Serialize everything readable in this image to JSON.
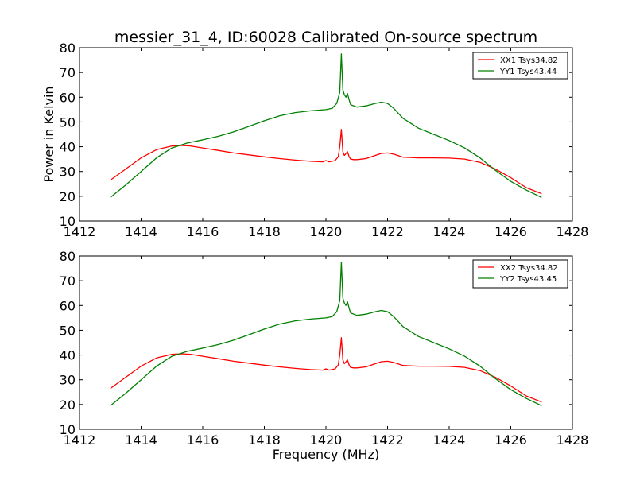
{
  "figure": {
    "title": "messier_31_4, ID:60028 Calibrated On-source spectrum"
  },
  "colors": {
    "xx": "#ff0000",
    "yy": "#008000",
    "axes": "#000000",
    "background": "#ffffff"
  },
  "chart_data": [
    {
      "type": "line",
      "title": "messier_31_4, ID:60028 Calibrated On-source spectrum",
      "xlabel": "",
      "ylabel": "Power in Kelvin",
      "xlim": [
        1412,
        1428
      ],
      "ylim": [
        10,
        80
      ],
      "xticks": [
        "1412",
        "1414",
        "1416",
        "1418",
        "1420",
        "1422",
        "1424",
        "1426",
        "1428"
      ],
      "yticks": [
        "10",
        "20",
        "30",
        "40",
        "50",
        "60",
        "70",
        "80"
      ],
      "grid": false,
      "legend": "top-right",
      "series": [
        {
          "name": "XX1 Tsys34.82",
          "color": "#ff0000",
          "x": [
            1413.0,
            1413.5,
            1414.0,
            1414.5,
            1415.0,
            1415.3,
            1415.6,
            1416.0,
            1416.5,
            1417.0,
            1417.5,
            1418.0,
            1418.5,
            1419.0,
            1419.5,
            1419.9,
            1420.0,
            1420.1,
            1420.3,
            1420.4,
            1420.45,
            1420.5,
            1420.55,
            1420.6,
            1420.7,
            1420.75,
            1420.8,
            1420.9,
            1421.0,
            1421.3,
            1421.6,
            1421.8,
            1422.0,
            1422.2,
            1422.5,
            1423.0,
            1423.5,
            1424.0,
            1424.5,
            1425.0,
            1425.5,
            1426.0,
            1426.5,
            1427.0
          ],
          "y": [
            26.5,
            31.0,
            35.5,
            38.8,
            40.3,
            40.5,
            40.3,
            39.5,
            38.5,
            37.5,
            36.7,
            35.9,
            35.2,
            34.6,
            34.1,
            33.9,
            34.4,
            33.9,
            34.4,
            36.0,
            40.0,
            47.0,
            38.0,
            36.5,
            38.0,
            36.0,
            35.0,
            34.8,
            34.8,
            35.2,
            36.5,
            37.3,
            37.5,
            37.0,
            35.8,
            35.5,
            35.5,
            35.4,
            35.0,
            33.7,
            31.0,
            27.5,
            23.5,
            21.0
          ]
        },
        {
          "name": "YY1 Tsys43.44",
          "color": "#008000",
          "x": [
            1413.0,
            1413.5,
            1414.0,
            1414.5,
            1415.0,
            1415.5,
            1416.0,
            1416.5,
            1417.0,
            1417.5,
            1418.0,
            1418.5,
            1419.0,
            1419.5,
            1420.0,
            1420.2,
            1420.35,
            1420.45,
            1420.5,
            1420.55,
            1420.6,
            1420.65,
            1420.7,
            1420.75,
            1420.8,
            1421.0,
            1421.3,
            1421.6,
            1421.8,
            1422.0,
            1422.2,
            1422.5,
            1423.0,
            1423.5,
            1424.0,
            1424.5,
            1425.0,
            1425.5,
            1426.0,
            1426.5,
            1427.0
          ],
          "y": [
            19.5,
            24.5,
            30.0,
            35.5,
            39.5,
            41.5,
            42.8,
            44.2,
            46.0,
            48.2,
            50.5,
            52.5,
            53.8,
            54.5,
            55.0,
            55.5,
            57.5,
            62.0,
            77.5,
            63.0,
            61.0,
            60.0,
            61.5,
            59.0,
            57.0,
            56.0,
            56.5,
            57.5,
            58.0,
            57.5,
            55.5,
            51.5,
            47.5,
            45.0,
            42.5,
            39.5,
            35.5,
            30.5,
            26.0,
            22.5,
            19.5
          ]
        }
      ]
    },
    {
      "type": "line",
      "title": "",
      "xlabel": "Frequency (MHz)",
      "ylabel": "",
      "xlim": [
        1412,
        1428
      ],
      "ylim": [
        10,
        80
      ],
      "xticks": [
        "1412",
        "1414",
        "1416",
        "1418",
        "1420",
        "1422",
        "1424",
        "1426",
        "1428"
      ],
      "yticks": [
        "10",
        "20",
        "30",
        "40",
        "50",
        "60",
        "70",
        "80"
      ],
      "grid": false,
      "legend": "top-right",
      "series": [
        {
          "name": "XX2 Tsys34.82",
          "color": "#ff0000",
          "x": [
            1413.0,
            1413.5,
            1414.0,
            1414.5,
            1415.0,
            1415.3,
            1415.6,
            1416.0,
            1416.5,
            1417.0,
            1417.5,
            1418.0,
            1418.5,
            1419.0,
            1419.5,
            1419.9,
            1420.0,
            1420.1,
            1420.3,
            1420.4,
            1420.45,
            1420.5,
            1420.55,
            1420.6,
            1420.7,
            1420.75,
            1420.8,
            1420.9,
            1421.0,
            1421.3,
            1421.6,
            1421.8,
            1422.0,
            1422.2,
            1422.5,
            1423.0,
            1423.5,
            1424.0,
            1424.5,
            1425.0,
            1425.5,
            1426.0,
            1426.5,
            1427.0
          ],
          "y": [
            26.5,
            31.0,
            35.5,
            38.8,
            40.3,
            40.5,
            40.3,
            39.5,
            38.5,
            37.5,
            36.7,
            35.9,
            35.2,
            34.6,
            34.1,
            33.9,
            34.4,
            33.9,
            34.4,
            36.0,
            40.0,
            47.0,
            38.0,
            36.5,
            38.0,
            36.0,
            35.0,
            34.8,
            34.8,
            35.2,
            36.5,
            37.3,
            37.5,
            37.0,
            35.8,
            35.5,
            35.5,
            35.4,
            35.0,
            33.7,
            31.0,
            27.5,
            23.5,
            21.0
          ]
        },
        {
          "name": "YY2 Tsys43.45",
          "color": "#008000",
          "x": [
            1413.0,
            1413.5,
            1414.0,
            1414.5,
            1415.0,
            1415.5,
            1416.0,
            1416.5,
            1417.0,
            1417.5,
            1418.0,
            1418.5,
            1419.0,
            1419.5,
            1420.0,
            1420.2,
            1420.35,
            1420.45,
            1420.5,
            1420.55,
            1420.6,
            1420.65,
            1420.7,
            1420.75,
            1420.8,
            1421.0,
            1421.3,
            1421.6,
            1421.8,
            1422.0,
            1422.2,
            1422.5,
            1423.0,
            1423.5,
            1424.0,
            1424.5,
            1425.0,
            1425.5,
            1426.0,
            1426.5,
            1427.0
          ],
          "y": [
            19.5,
            24.5,
            30.0,
            35.5,
            39.5,
            41.5,
            42.8,
            44.2,
            46.0,
            48.2,
            50.5,
            52.5,
            53.8,
            54.5,
            55.0,
            55.5,
            57.5,
            62.0,
            77.5,
            63.0,
            61.0,
            60.0,
            61.5,
            59.0,
            57.0,
            56.0,
            56.5,
            57.5,
            58.0,
            57.5,
            55.5,
            51.5,
            47.5,
            45.0,
            42.5,
            39.5,
            35.5,
            30.5,
            26.0,
            22.5,
            19.5
          ]
        }
      ]
    }
  ]
}
